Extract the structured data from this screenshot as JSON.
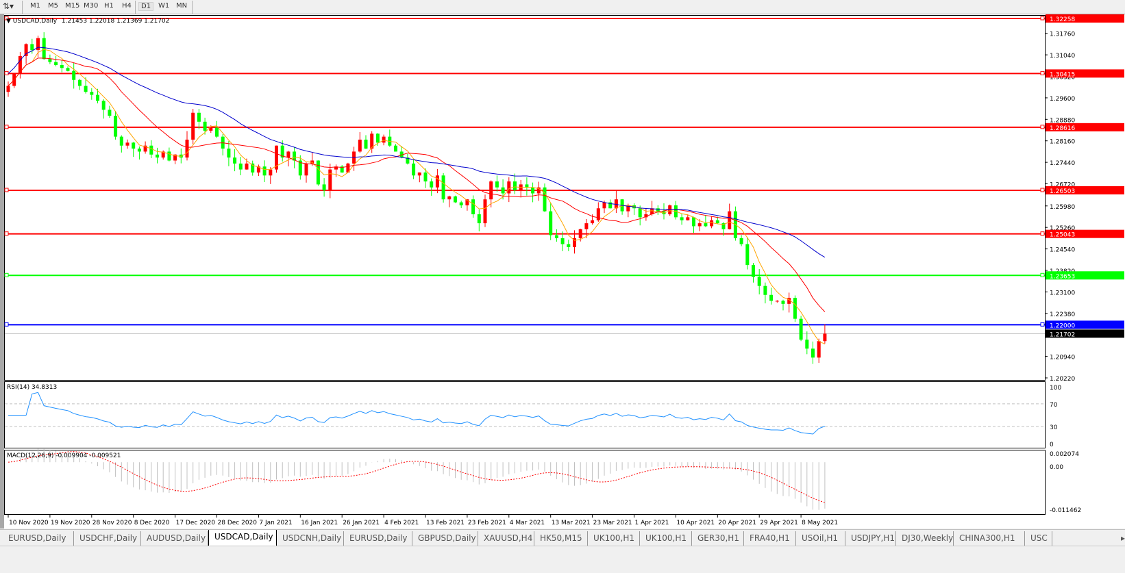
{
  "toolbar": {
    "timeframes": [
      "M1",
      "M5",
      "M15",
      "M30",
      "H1",
      "H4",
      "D1",
      "W1",
      "MN"
    ],
    "active": "D1"
  },
  "chart": {
    "title": "USDCAD,Daily",
    "ohlc_text": "1.21453 1.22018 1.21369 1.21702",
    "bull_color": "#ff0000",
    "bear_color": "#00ff00",
    "ma_colors": [
      "#ffa500",
      "#ff0000",
      "#0000cd"
    ],
    "hlines": [
      {
        "price": "1.32258",
        "color": "#ff0000"
      },
      {
        "price": "1.30415",
        "color": "#ff0000"
      },
      {
        "price": "1.28616",
        "color": "#ff0000"
      },
      {
        "price": "1.26503",
        "color": "#ff0000"
      },
      {
        "price": "1.25043",
        "color": "#ff0000"
      },
      {
        "price": "1.23653",
        "color": "#00ff00"
      },
      {
        "price": "1.22000",
        "color": "#0000ff"
      }
    ],
    "current_price": "1.21702",
    "y_ticks": [
      "1.31760",
      "1.31040",
      "1.30320",
      "1.29600",
      "1.28880",
      "1.28160",
      "1.27440",
      "1.26720",
      "1.25980",
      "1.25260",
      "1.24540",
      "1.23820",
      "1.23100",
      "1.22380",
      "1.20940",
      "1.20220"
    ],
    "x_ticks": [
      "10 Nov 2020",
      "19 Nov 2020",
      "28 Nov 2020",
      "8 Dec 2020",
      "17 Dec 2020",
      "28 Dec 2020",
      "7 Jan 2021",
      "16 Jan 2021",
      "26 Jan 2021",
      "4 Feb 2021",
      "13 Feb 2021",
      "23 Feb 2021",
      "4 Mar 2021",
      "13 Mar 2021",
      "23 Mar 2021",
      "1 Apr 2021",
      "10 Apr 2021",
      "20 Apr 2021",
      "29 Apr 2021",
      "8 May 2021"
    ]
  },
  "rsi": {
    "label": "RSI(14) 34.8313",
    "levels": [
      "100",
      "70",
      "30",
      "0"
    ]
  },
  "macd": {
    "label": "MACD(12,26,9) -0.009904 -0.009521",
    "max": "0.002074",
    "zero": "0.00",
    "min": "-0.011462"
  },
  "chart_data": {
    "type": "candlestick",
    "title": "USDCAD,Daily",
    "ylim": [
      1.2022,
      1.32258
    ],
    "closes": [
      1.3,
      1.304,
      1.31,
      1.314,
      1.312,
      1.316,
      1.309,
      1.308,
      1.307,
      1.306,
      1.305,
      1.302,
      1.3,
      1.298,
      1.297,
      1.295,
      1.292,
      1.29,
      1.283,
      1.28,
      1.281,
      1.279,
      1.278,
      1.28,
      1.277,
      1.276,
      1.278,
      1.275,
      1.277,
      1.276,
      1.282,
      1.291,
      1.288,
      1.285,
      1.286,
      1.283,
      1.279,
      1.276,
      1.274,
      1.272,
      1.274,
      1.271,
      1.273,
      1.27,
      1.272,
      1.28,
      1.276,
      1.278,
      1.275,
      1.27,
      1.274,
      1.275,
      1.267,
      1.265,
      1.272,
      1.273,
      1.271,
      1.274,
      1.278,
      1.282,
      1.279,
      1.284,
      1.281,
      1.283,
      1.28,
      1.278,
      1.276,
      1.274,
      1.27,
      1.271,
      1.268,
      1.266,
      1.27,
      1.262,
      1.263,
      1.261,
      1.26,
      1.262,
      1.257,
      1.254,
      1.262,
      1.268,
      1.266,
      1.264,
      1.268,
      1.265,
      1.267,
      1.266,
      1.264,
      1.266,
      1.258,
      1.25,
      1.249,
      1.247,
      1.246,
      1.249,
      1.252,
      1.254,
      1.255,
      1.259,
      1.261,
      1.259,
      1.262,
      1.258,
      1.26,
      1.259,
      1.256,
      1.257,
      1.259,
      1.258,
      1.257,
      1.26,
      1.256,
      1.255,
      1.256,
      1.253,
      1.254,
      1.253,
      1.255,
      1.254,
      1.252,
      1.258,
      1.249,
      1.247,
      1.24,
      1.236,
      1.233,
      1.23,
      1.228,
      1.228,
      1.227,
      1.229,
      1.222,
      1.215,
      1.212,
      1.209,
      1.21453,
      1.21702
    ],
    "last_bar": {
      "open": 1.21453,
      "high": 1.22018,
      "low": 1.21369,
      "close": 1.21702
    }
  },
  "tabs": [
    "EURUSD,Daily",
    "USDCHF,Daily",
    "AUDUSD,Daily",
    "USDCAD,Daily",
    "USDCNH,Daily",
    "EURUSD,Daily",
    "GBPUSD,Daily",
    "XAUUSD,H4",
    "HK50,M15",
    "UK100,H1",
    "UK100,H1",
    "GER30,H1",
    "FRA40,H1",
    "USOil,H1",
    "USDJPY,H1",
    "DJ30,Weekly",
    "CHINA300,H1",
    "USC"
  ],
  "active_tab": "USDCAD,Daily"
}
